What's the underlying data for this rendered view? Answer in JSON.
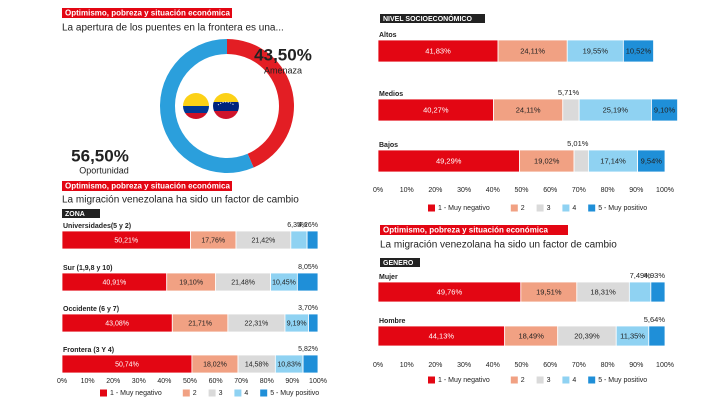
{
  "chart_data": [
    {
      "type": "pie",
      "header": "Optimismo, pobreza y situación económica",
      "title": "La apertura de los puentes en la frontera es una...",
      "labels": [
        "Amenaza",
        "Oportunidad"
      ],
      "values": [
        43.5,
        56.5
      ],
      "value_labels": [
        "43,50%",
        "56,50%"
      ],
      "colors": [
        "#e31e24",
        "#2b9fdc"
      ]
    },
    {
      "type": "bar",
      "orientation": "horizontal",
      "stacked": true,
      "header": "Optimismo, pobreza y situación económica",
      "title": "La migración venezolana ha sido un factor de cambio",
      "section": "ZONA",
      "categories": [
        "Universidades(5 y 2)",
        "Sur (1,9,8 y 10)",
        "Occidente (6 y 7)",
        "Frontera (3 Y 4)"
      ],
      "series": [
        {
          "name": "1 - Muy negativo",
          "color": "#e30613",
          "values": [
            50.21,
            40.91,
            43.08,
            50.74
          ],
          "value_labels": [
            "50,21%",
            "40,91%",
            "43,08%",
            "50,74%"
          ]
        },
        {
          "name": "2",
          "color": "#f1a183",
          "values": [
            17.76,
            19.1,
            21.71,
            18.02
          ],
          "value_labels": [
            "17,76%",
            "19,10%",
            "21,71%",
            "18,02%"
          ]
        },
        {
          "name": "3",
          "color": "#dadada",
          "values": [
            21.42,
            21.48,
            22.31,
            14.58
          ],
          "value_labels": [
            "21,42%",
            "21,48%",
            "22,31%",
            "14,58%"
          ]
        },
        {
          "name": "4",
          "color": "#8fd2f2",
          "values": [
            6.35,
            10.45,
            9.19,
            10.83
          ],
          "value_labels": [
            "6,35%",
            "10,45%",
            "9,19%",
            "10,83%"
          ]
        },
        {
          "name": "5 - Muy positivo",
          "color": "#1f8fd8",
          "values": [
            4.26,
            8.05,
            3.7,
            5.82
          ],
          "value_labels": [
            "4,26%",
            "8,05%",
            "3,70%",
            "5,82%"
          ]
        }
      ],
      "xlim": [
        0,
        100
      ],
      "xticks": [
        {
          "value": 0,
          "label": "0%"
        },
        {
          "value": 10,
          "label": "10%"
        },
        {
          "value": 20,
          "label": "20%"
        },
        {
          "value": 30,
          "label": "30%"
        },
        {
          "value": 40,
          "label": "40%"
        },
        {
          "value": 50,
          "label": "50%"
        },
        {
          "value": 60,
          "label": "60%"
        },
        {
          "value": 70,
          "label": "70%"
        },
        {
          "value": 80,
          "label": "80%"
        },
        {
          "value": 90,
          "label": "90%"
        },
        {
          "value": 100,
          "label": "100%"
        }
      ]
    },
    {
      "type": "bar",
      "orientation": "horizontal",
      "stacked": true,
      "section": "NIVEL SOCIOECONÓMICO",
      "categories": [
        "Altos",
        "Medios",
        "Bajos"
      ],
      "series": [
        {
          "name": "1 - Muy negativo",
          "color": "#e30613",
          "values": [
            41.83,
            40.27,
            49.29
          ],
          "value_labels": [
            "41,83%",
            "40,27%",
            "49,29%"
          ]
        },
        {
          "name": "2",
          "color": "#f1a183",
          "values": [
            24.11,
            24.11,
            19.02
          ],
          "value_labels": [
            "24,11%",
            "24,11%",
            "19,02%"
          ]
        },
        {
          "name": "3",
          "color": "#dadada",
          "values": [
            null,
            5.71,
            5.01
          ],
          "value_labels": [
            null,
            "5,71%",
            "5,01%"
          ]
        },
        {
          "name": "4",
          "color": "#8fd2f2",
          "values": [
            19.55,
            25.19,
            17.14
          ],
          "value_labels": [
            "19,55%",
            "25,19%",
            "17,14%"
          ]
        },
        {
          "name": "5 - Muy positivo",
          "color": "#1f8fd8",
          "values": [
            10.52,
            9.1,
            9.54
          ],
          "value_labels": [
            "10,52%",
            "9,10%",
            "9,54%"
          ]
        }
      ],
      "xlim": [
        0,
        100
      ],
      "xticks": [
        {
          "value": 0,
          "label": "0%"
        },
        {
          "value": 10,
          "label": "10%"
        },
        {
          "value": 20,
          "label": "20%"
        },
        {
          "value": 30,
          "label": "30%"
        },
        {
          "value": 40,
          "label": "40%"
        },
        {
          "value": 50,
          "label": "50%"
        },
        {
          "value": 60,
          "label": "60%"
        },
        {
          "value": 70,
          "label": "70%"
        },
        {
          "value": 80,
          "label": "80%"
        },
        {
          "value": 90,
          "label": "90%"
        },
        {
          "value": 100,
          "label": "100%"
        }
      ]
    },
    {
      "type": "bar",
      "orientation": "horizontal",
      "stacked": true,
      "header": "Optimismo, pobreza y situación económica",
      "title": "La migración venezolana ha sido un factor de cambio",
      "section": "GENERO",
      "categories": [
        "Mujer",
        "Hombre"
      ],
      "series": [
        {
          "name": "1 - Muy negativo",
          "color": "#e30613",
          "values": [
            49.76,
            44.13
          ],
          "value_labels": [
            "49,76%",
            "44,13%"
          ]
        },
        {
          "name": "2",
          "color": "#f1a183",
          "values": [
            19.51,
            18.49
          ],
          "value_labels": [
            "19,51%",
            "18,49%"
          ]
        },
        {
          "name": "3",
          "color": "#dadada",
          "values": [
            18.31,
            20.39
          ],
          "value_labels": [
            "18,31%",
            "20,39%"
          ]
        },
        {
          "name": "4",
          "color": "#8fd2f2",
          "values": [
            7.49,
            11.35
          ],
          "value_labels": [
            "7,49%",
            "11,35%"
          ]
        },
        {
          "name": "5 - Muy positivo",
          "color": "#1f8fd8",
          "values": [
            4.93,
            5.64
          ],
          "value_labels": [
            "4,93%",
            "5,64%"
          ]
        }
      ],
      "xlim": [
        0,
        100
      ],
      "xticks": [
        {
          "value": 0,
          "label": "0%"
        },
        {
          "value": 10,
          "label": "10%"
        },
        {
          "value": 20,
          "label": "20%"
        },
        {
          "value": 30,
          "label": "30%"
        },
        {
          "value": 40,
          "label": "40%"
        },
        {
          "value": 50,
          "label": "50%"
        },
        {
          "value": 60,
          "label": "60%"
        },
        {
          "value": 70,
          "label": "70%"
        },
        {
          "value": 80,
          "label": "80%"
        },
        {
          "value": 90,
          "label": "90%"
        },
        {
          "value": 100,
          "label": "100%"
        }
      ]
    }
  ]
}
